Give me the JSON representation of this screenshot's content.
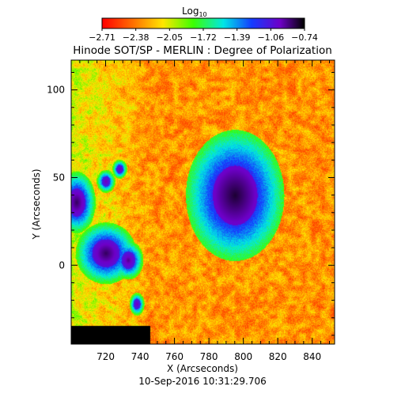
{
  "chart_data": {
    "type": "heatmap",
    "title": "Hinode SOT/SP - MERLIN : Degree of Polarization",
    "subtitle": "10-Sep-2016 10:31:29.706",
    "xlabel": "X (Arcseconds)",
    "ylabel": "Y (Arcseconds)",
    "xlim": [
      700,
      853
    ],
    "ylim": [
      -45,
      117
    ],
    "x_ticks": [
      720,
      740,
      760,
      780,
      800,
      820,
      840
    ],
    "y_ticks": [
      0,
      50,
      100
    ],
    "colorbar": {
      "label_base": "Log",
      "label_sub": "10",
      "range": [
        -2.71,
        -0.74
      ],
      "ticks": [
        "-2.71",
        "-2.38",
        "-2.05",
        "-1.72",
        "-1.39",
        "-1.06",
        "-0.74"
      ]
    },
    "features": [
      {
        "kind": "sunspot",
        "x": 795,
        "y": 40,
        "rx": 13,
        "ry": 17,
        "value": -0.8
      },
      {
        "kind": "spot",
        "x": 720,
        "y": 7,
        "rx": 8,
        "ry": 8,
        "value": -0.85
      },
      {
        "kind": "spot",
        "x": 703,
        "y": 36,
        "rx": 5,
        "ry": 8,
        "value": -0.85
      },
      {
        "kind": "spot",
        "x": 733,
        "y": 3,
        "rx": 4,
        "ry": 5,
        "value": -0.9
      },
      {
        "kind": "spot",
        "x": 738,
        "y": -22,
        "rx": 2,
        "ry": 3,
        "value": -0.95
      },
      {
        "kind": "spot",
        "x": 720,
        "y": 48,
        "rx": 2.5,
        "ry": 3,
        "value": -0.95
      },
      {
        "kind": "spot",
        "x": 728,
        "y": 55,
        "rx": 2,
        "ry": 2.5,
        "value": -0.95
      }
    ]
  }
}
